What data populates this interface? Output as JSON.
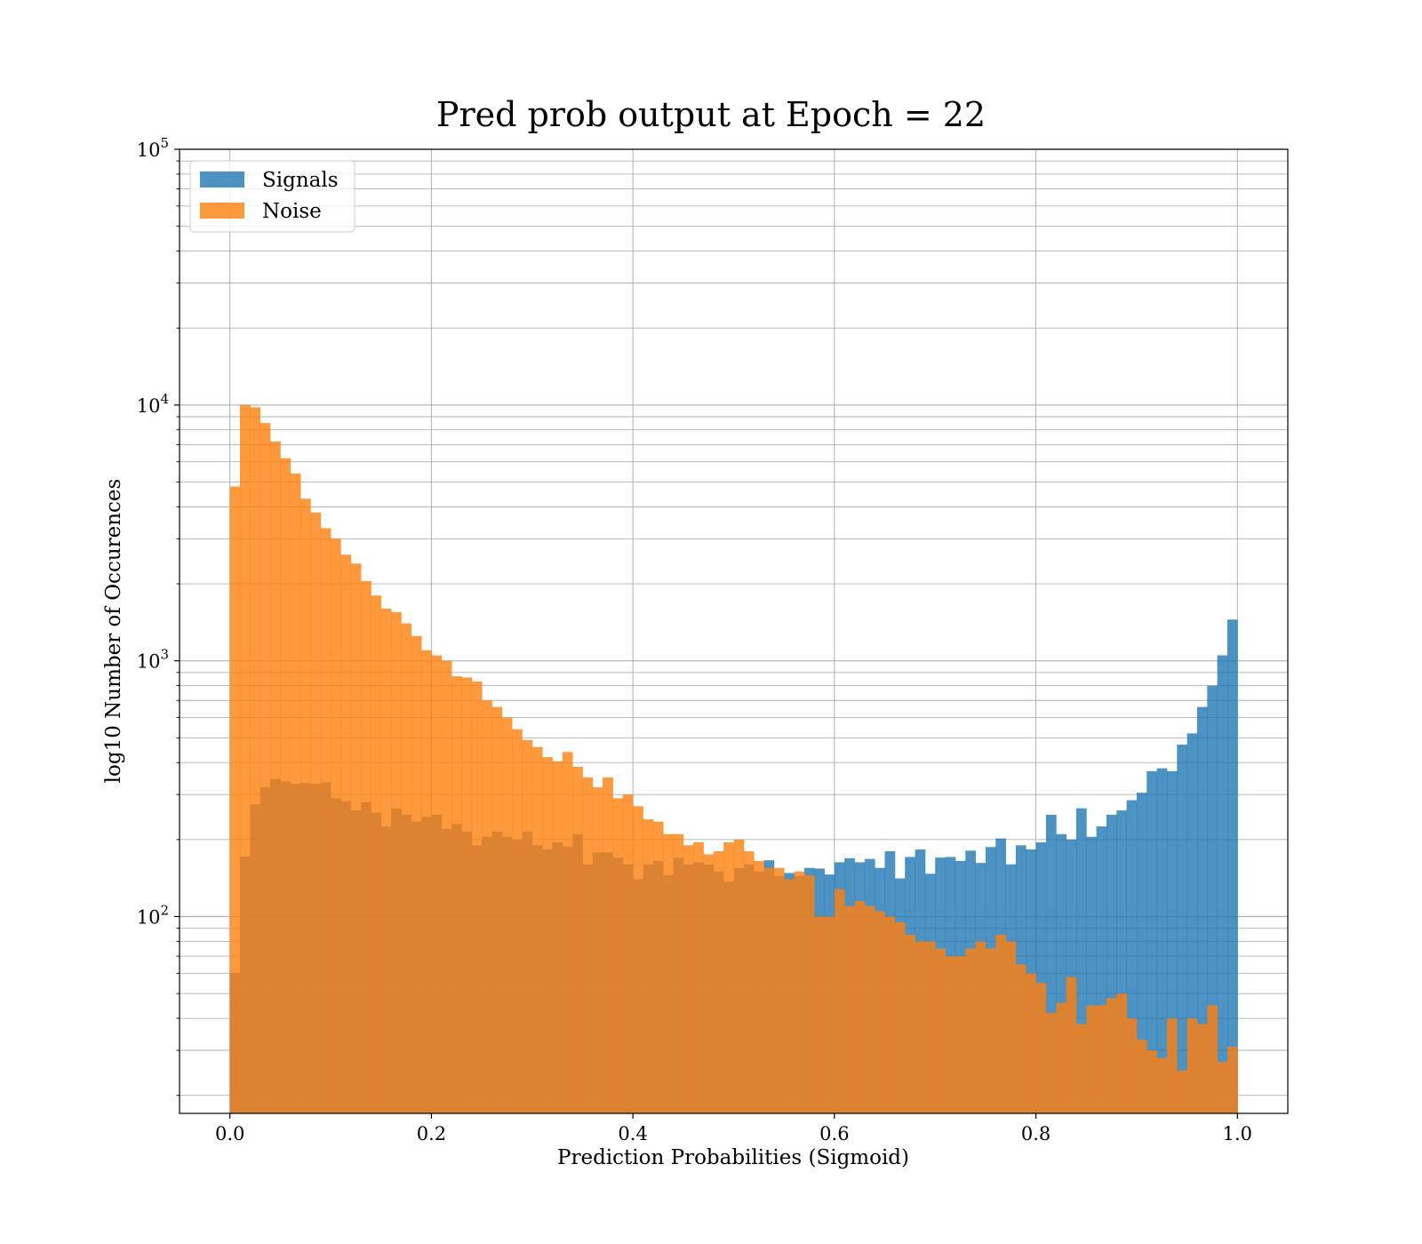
{
  "chart_data": {
    "type": "bar",
    "title": "Pred prob output at Epoch = 22",
    "xlabel": "Prediction Probabilities (Sigmoid)",
    "ylabel": "log10 Number of Occurences",
    "yscale": "log",
    "xlim": [
      -0.05,
      1.05
    ],
    "ylim": [
      17,
      100000
    ],
    "grid": true,
    "legend_position": "top-left",
    "x_ticks": [
      0.0,
      0.2,
      0.4,
      0.6,
      0.8,
      1.0
    ],
    "x_tick_labels": [
      "0.0",
      "0.2",
      "0.4",
      "0.6",
      "0.8",
      "1.0"
    ],
    "y_ticks": [
      {
        "value": 100,
        "base": "10",
        "exp": "2"
      },
      {
        "value": 1000,
        "base": "10",
        "exp": "3"
      },
      {
        "value": 10000,
        "base": "10",
        "exp": "4"
      },
      {
        "value": 100000,
        "base": "10",
        "exp": "5"
      }
    ],
    "bins": {
      "start": 0.0,
      "end": 1.0,
      "count": 100
    },
    "series": [
      {
        "name": "Signals",
        "color": "#1f77b4",
        "alpha": 0.8,
        "values": [
          60,
          172,
          275,
          320,
          345,
          338,
          330,
          333,
          330,
          335,
          290,
          283,
          260,
          280,
          255,
          225,
          265,
          250,
          235,
          245,
          250,
          220,
          230,
          215,
          190,
          205,
          215,
          205,
          200,
          215,
          190,
          183,
          195,
          188,
          210,
          160,
          178,
          178,
          170,
          160,
          140,
          160,
          165,
          145,
          170,
          160,
          163,
          160,
          150,
          137,
          155,
          160,
          150,
          166,
          144,
          148,
          144,
          155,
          154,
          146,
          163,
          169,
          163,
          168,
          155,
          180,
          141,
          171,
          183,
          147,
          170,
          171,
          165,
          181,
          162,
          187,
          202,
          160,
          190,
          183,
          195,
          250,
          210,
          200,
          265,
          205,
          225,
          250,
          260,
          285,
          305,
          370,
          380,
          370,
          470,
          520,
          660,
          800,
          1050,
          1450
        ]
      },
      {
        "name": "Noise",
        "color": "#ff7f0e",
        "alpha": 0.8,
        "values": [
          4800,
          10000,
          9800,
          8500,
          7200,
          6200,
          5400,
          4300,
          3800,
          3300,
          3000,
          2600,
          2400,
          2050,
          1800,
          1600,
          1550,
          1400,
          1250,
          1100,
          1050,
          1000,
          870,
          860,
          830,
          700,
          660,
          600,
          540,
          490,
          460,
          420,
          405,
          440,
          385,
          350,
          320,
          350,
          290,
          300,
          270,
          240,
          235,
          210,
          210,
          190,
          195,
          175,
          180,
          195,
          200,
          180,
          165,
          155,
          155,
          140,
          150,
          145,
          100,
          100,
          128,
          110,
          115,
          110,
          105,
          100,
          95,
          85,
          80,
          80,
          75,
          70,
          70,
          75,
          80,
          75,
          85,
          80,
          65,
          60,
          55,
          42,
          46,
          58,
          38,
          45,
          45,
          48,
          50,
          40,
          33,
          30,
          28,
          40,
          25,
          40,
          38,
          45,
          27,
          31
        ]
      }
    ]
  }
}
